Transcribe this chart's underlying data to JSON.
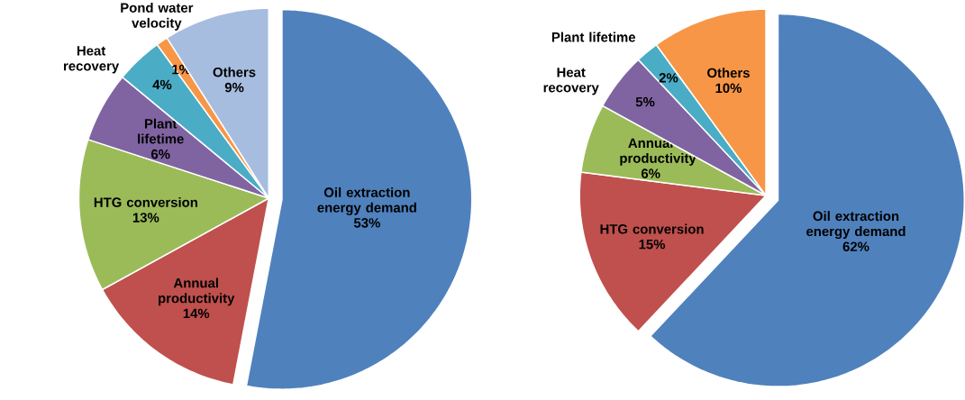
{
  "chart_data": [
    {
      "type": "pie",
      "categories": [
        "Oil extraction energy demand",
        "Annual productivity",
        "HTG conversion",
        "Plant lifetime",
        "Heat recovery",
        "Pond water velocity",
        "Others"
      ],
      "values": [
        53,
        14,
        13,
        6,
        4,
        1,
        9
      ],
      "value_labels": [
        "53%",
        "14%",
        "13%",
        "6%",
        "4%",
        "1%",
        "9%"
      ],
      "colors": [
        "#4f81bd",
        "#c0504d",
        "#9bbb59",
        "#8064a2",
        "#4bacc6",
        "#f79646",
        "#a7bde0"
      ]
    },
    {
      "type": "pie",
      "categories": [
        "Oil extraction energy demand",
        "HTG conversion",
        "Annual productivity",
        "Heat recovery",
        "Plant lifetime",
        "Others"
      ],
      "values": [
        62,
        15,
        6,
        5,
        2,
        10
      ],
      "value_labels": [
        "62%",
        "15%",
        "6%",
        "5%",
        "2%",
        "10%"
      ],
      "colors": [
        "#4f81bd",
        "#c0504d",
        "#9bbb59",
        "#8064a2",
        "#4bacc6",
        "#f79646"
      ]
    }
  ]
}
